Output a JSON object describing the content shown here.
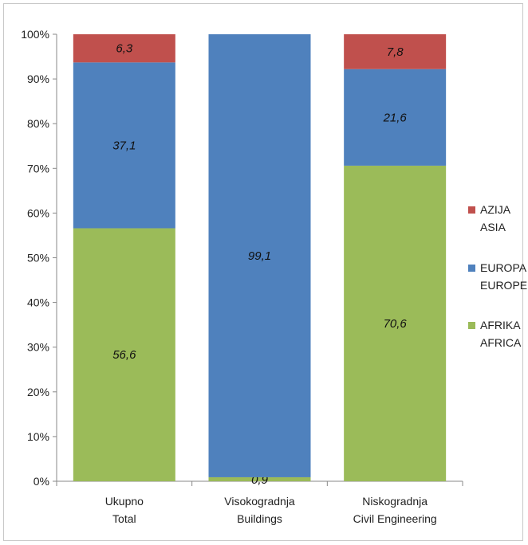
{
  "chart_data": {
    "type": "bar",
    "stacked": true,
    "percent": true,
    "categories": [
      [
        "Ukupno",
        "Total"
      ],
      [
        "Visokogradnja",
        "Buildings"
      ],
      [
        "Niskogradnja",
        "Civil Engineering"
      ]
    ],
    "series": [
      {
        "name": [
          "AFRIKA",
          "AFRICA"
        ],
        "color": "#9bbb59",
        "values": [
          56.6,
          0.9,
          70.6
        ],
        "labels": [
          "56,6",
          "0,9",
          "70,6"
        ]
      },
      {
        "name": [
          "EUROPA",
          "EUROPE"
        ],
        "color": "#4f81bd",
        "values": [
          37.1,
          99.1,
          21.6
        ],
        "labels": [
          "37,1",
          "99,1",
          "21,6"
        ]
      },
      {
        "name": [
          "AZIJA",
          "ASIA"
        ],
        "color": "#c0504d",
        "values": [
          6.3,
          0,
          7.8
        ],
        "labels": [
          "6,3",
          "",
          "7,8"
        ]
      }
    ],
    "yticks": [
      "0%",
      "10%",
      "20%",
      "30%",
      "40%",
      "50%",
      "60%",
      "70%",
      "80%",
      "90%",
      "100%"
    ],
    "ylim": [
      0,
      100
    ],
    "grid": false,
    "legend": "right"
  }
}
